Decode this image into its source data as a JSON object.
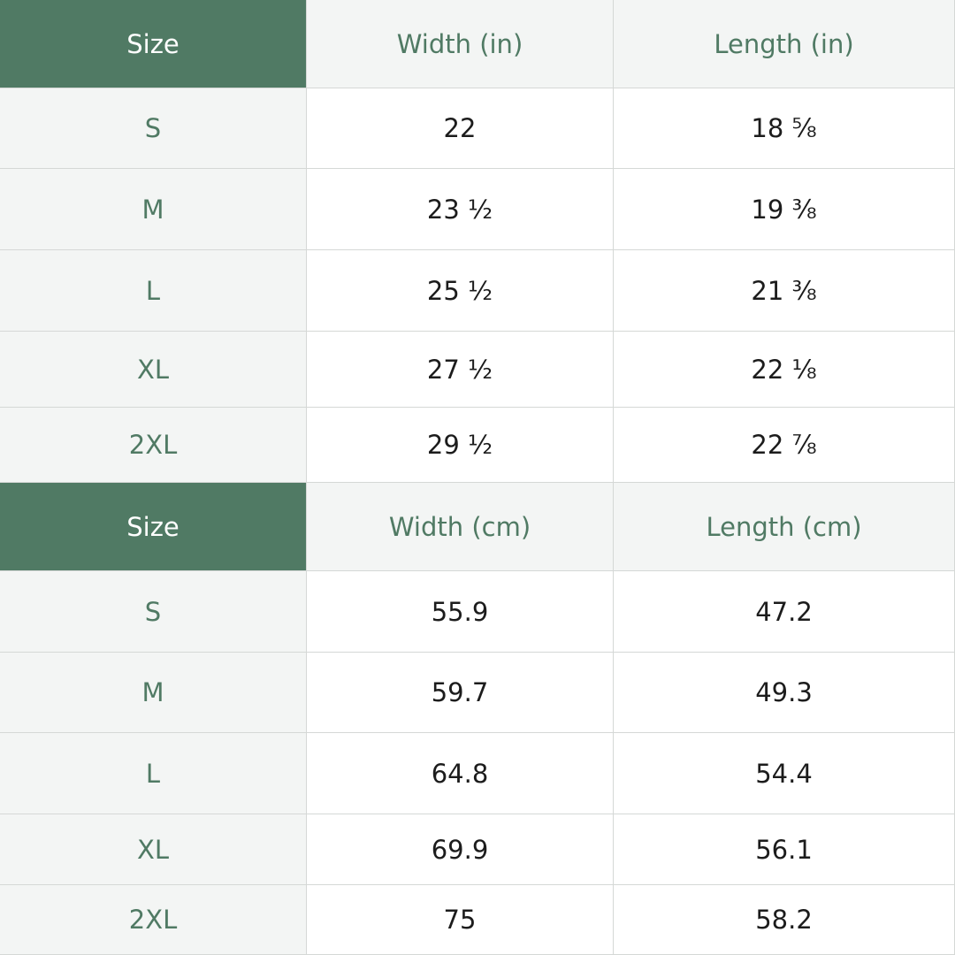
{
  "tables": [
    {
      "header": [
        "Size",
        "Width (in)",
        "Length (in)"
      ],
      "rows": [
        [
          "S",
          "22",
          "18 ⅝"
        ],
        [
          "M",
          "23 ½",
          "19 ⅜"
        ],
        [
          "L",
          "25 ½",
          "21 ⅜"
        ],
        [
          "XL",
          "27 ½",
          "22 ⅛"
        ],
        [
          "2XL",
          "29 ½",
          "22 ⅞"
        ]
      ]
    },
    {
      "header": [
        "Size",
        "Width (cm)",
        "Length (cm)"
      ],
      "rows": [
        [
          "S",
          "55.9",
          "47.2"
        ],
        [
          "M",
          "59.7",
          "49.3"
        ],
        [
          "L",
          "64.8",
          "54.4"
        ],
        [
          "XL",
          "69.9",
          "56.1"
        ],
        [
          "2XL",
          "75",
          "58.2"
        ]
      ]
    }
  ]
}
